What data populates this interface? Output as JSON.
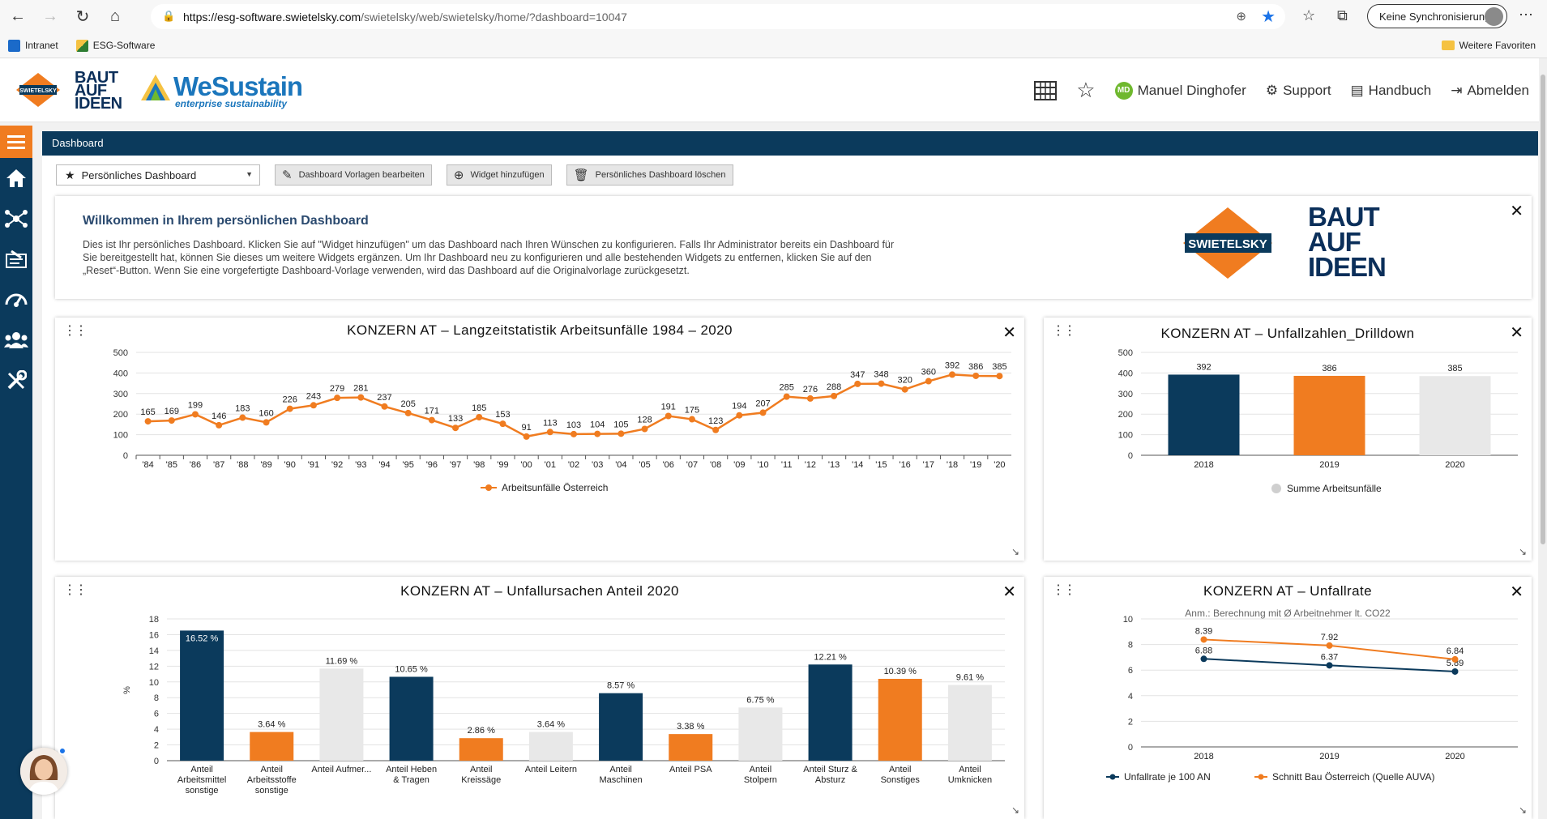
{
  "browser": {
    "url_host": "https://esg-software.swietelsky.com",
    "url_path": "/swietelsky/web/swietelsky/home/?dashboard=10047",
    "sync_label": "Keine Synchronisierung",
    "favorites": [
      "Intranet",
      "ESG-Software"
    ],
    "favorites_right": "Weitere Favoriten"
  },
  "header": {
    "brand_baut": "BAUT",
    "brand_auf": "AUF",
    "brand_ideen": "IDEEN",
    "we_title": "WeSustain",
    "we_subtitle": "enterprise sustainability",
    "user_initials": "MD",
    "user_name": "Manuel Dinghofer",
    "support": "Support",
    "handbook": "Handbuch",
    "logout": "Abmelden"
  },
  "page": {
    "title": "Dashboard",
    "select_value": "Persönliches Dashboard",
    "btn_edit_templates": "Dashboard Vorlagen bearbeiten",
    "btn_add_widget": "Widget hinzufügen",
    "btn_delete": "Persönliches Dashboard löschen"
  },
  "welcome": {
    "title": "Willkommen in Ihrem persönlichen Dashboard",
    "text": "Dies ist Ihr persönliches Dashboard. Klicken Sie auf \"Widget hinzufügen\" um das Dashboard nach Ihren Wünschen zu konfigurieren. Falls Ihr Administrator bereits ein Dashboard für Sie bereitgestellt hat, können Sie dieses um weitere Widgets ergänzen. Um Ihr Dashboard neu zu konfigurieren und alle bestehenden Widgets zu entfernen, klicken Sie auf den „Reset“-Button. Wenn Sie eine vorgefertigte Dashboard-Vorlage verwenden, wird das Dashboard auf die Originalvorlage zurückgesetzt.",
    "logo_word": "SWIETELSKY",
    "logo_baut": "BAUT",
    "logo_auf": "AUF",
    "logo_ideen": "IDEEN"
  },
  "colors": {
    "navy": "#0b3a5c",
    "orange": "#f07c20",
    "lightgray": "#e8e8e8",
    "line_orange": "#f07c20"
  },
  "chart_data": [
    {
      "type": "line",
      "title": "KONZERN AT – Langzeitstatistik Arbeitsunfälle 1984 – 2020",
      "x": [
        "'84",
        "'85",
        "'86",
        "'87",
        "'88",
        "'89",
        "'90",
        "'91",
        "'92",
        "'93",
        "'94",
        "'95",
        "'96",
        "'97",
        "'98",
        "'99",
        "'00",
        "'01",
        "'02",
        "'03",
        "'04",
        "'05",
        "'06",
        "'07",
        "'08",
        "'09",
        "'10",
        "'11",
        "'12",
        "'13",
        "'14",
        "'15",
        "'16",
        "'17",
        "'18",
        "'19",
        "'20"
      ],
      "series": [
        {
          "name": "Arbeitsunfälle Österreich",
          "values": [
            165,
            169,
            199,
            146,
            183,
            160,
            226,
            243,
            279,
            281,
            237,
            205,
            171,
            133,
            185,
            153,
            91,
            113,
            103,
            104,
            105,
            128,
            191,
            175,
            123,
            194,
            207,
            285,
            276,
            288,
            347,
            348,
            320,
            360,
            392,
            386,
            385
          ]
        }
      ],
      "ylim": [
        0,
        500
      ],
      "yticks": [
        0,
        100,
        200,
        300,
        400,
        500
      ],
      "grid": true,
      "legend": "bottom"
    },
    {
      "type": "bar",
      "title": "KONZERN AT – Unfallzahlen_Drilldown",
      "categories": [
        "2018",
        "2019",
        "2020"
      ],
      "values": [
        392,
        386,
        385
      ],
      "series": [
        {
          "name": "Summe Arbeitsunfälle"
        }
      ],
      "ylim": [
        0,
        500
      ],
      "yticks": [
        0,
        100,
        200,
        300,
        400,
        500
      ],
      "legend": "bottom"
    },
    {
      "type": "bar",
      "title": "KONZERN AT – Unfallursachen Anteil 2020",
      "ylabel": "%",
      "categories": [
        [
          "Anteil",
          "Arbeitsmittel",
          "sonstige"
        ],
        [
          "Anteil",
          "Arbeitsstoffe",
          "sonstige"
        ],
        [
          "Anteil Aufmer..."
        ],
        [
          "Anteil Heben",
          "& Tragen"
        ],
        [
          "Anteil",
          "Kreissäge"
        ],
        [
          "Anteil Leitern"
        ],
        [
          "Anteil",
          "Maschinen"
        ],
        [
          "Anteil PSA"
        ],
        [
          "Anteil",
          "Stolpern"
        ],
        [
          "Anteil Sturz &",
          "Absturz"
        ],
        [
          "Anteil",
          "Sonstiges"
        ],
        [
          "Anteil",
          "Umknicken"
        ]
      ],
      "values": [
        16.52,
        3.64,
        11.69,
        10.65,
        2.86,
        3.64,
        8.57,
        3.38,
        6.75,
        12.21,
        10.39,
        9.61
      ],
      "labels": [
        "16.52 %",
        "3.64 %",
        "11.69 %",
        "10.65 %",
        "2.86 %",
        "3.64 %",
        "8.57 %",
        "3.38 %",
        "6.75 %",
        "12.21 %",
        "10.39 %",
        "9.61 %"
      ],
      "ylim": [
        0,
        18
      ],
      "yticks": [
        0,
        2,
        4,
        6,
        8,
        10,
        12,
        14,
        16,
        18
      ]
    },
    {
      "type": "line",
      "title": "KONZERN AT – Unfallrate",
      "subtitle": "Anm.: Berechnung mit Ø Arbeitnehmer lt. CO22",
      "x": [
        "2018",
        "2019",
        "2020"
      ],
      "series": [
        {
          "name": "Unfallrate je 100 AN",
          "values": [
            6.88,
            6.37,
            5.89
          ]
        },
        {
          "name": "Schnitt Bau Österreich (Quelle AUVA)",
          "values": [
            8.39,
            7.92,
            6.84
          ]
        }
      ],
      "ylim": [
        0,
        10
      ],
      "yticks": [
        0,
        2,
        4,
        6,
        8,
        10
      ],
      "legend": "bottom"
    }
  ]
}
